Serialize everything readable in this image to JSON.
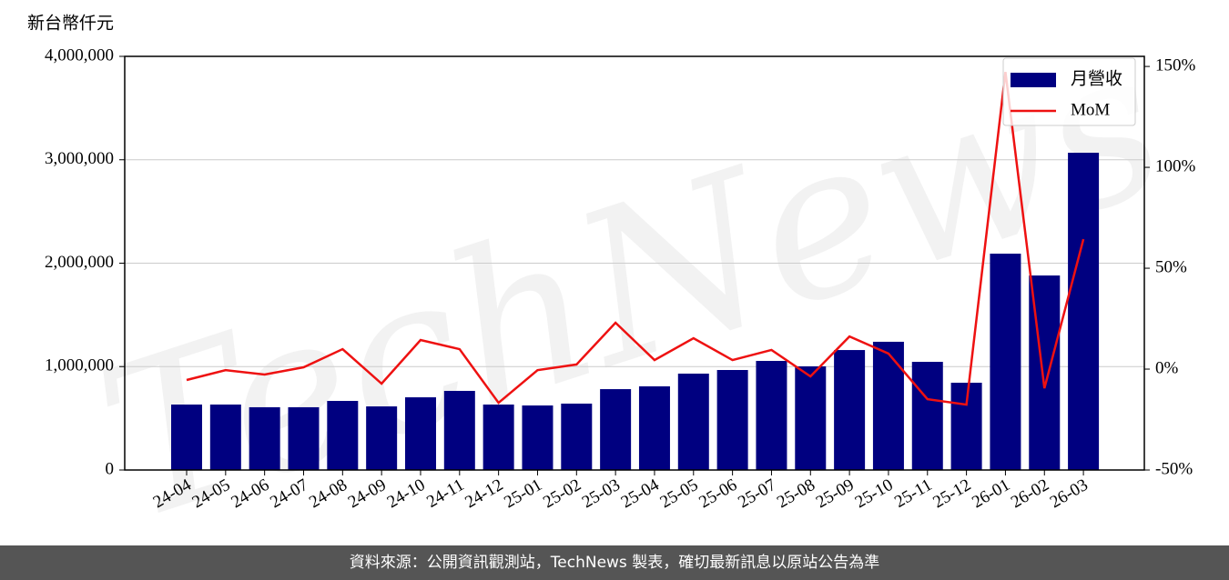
{
  "chart_data": {
    "type": "bar",
    "y_axis_label": "新台幣仟元",
    "watermark": "TechNews",
    "footer": "資料來源：公開資訊觀測站，TechNews 製表，確切最新訊息以原站公告為準",
    "categories": [
      "24-04",
      "24-05",
      "24-06",
      "24-07",
      "24-08",
      "24-09",
      "24-10",
      "24-11",
      "24-12",
      "25-01",
      "25-02",
      "25-03",
      "25-04",
      "25-05",
      "25-06",
      "25-07",
      "25-08",
      "25-09",
      "25-10",
      "25-11",
      "25-12",
      "26-01",
      "26-02",
      "26-03"
    ],
    "series": [
      {
        "name": "月營收",
        "type": "bar",
        "color": "#000080",
        "values": [
          633000,
          633000,
          607000,
          607000,
          668000,
          615000,
          703000,
          765000,
          633000,
          624000,
          642000,
          782000,
          809000,
          932000,
          967000,
          1055000,
          1002000,
          1160000,
          1240000,
          1046000,
          844000,
          2092000,
          1881000,
          3068000
        ]
      },
      {
        "name": "MoM",
        "type": "line",
        "axis": "y2",
        "color": "#ee1111",
        "values": [
          -5.4,
          -0.5,
          -2.7,
          0.9,
          9.9,
          -7.2,
          14.4,
          9.9,
          -16.7,
          -0.5,
          2.3,
          23.0,
          4.5,
          15.3,
          4.5,
          9.5,
          -3.6,
          16.2,
          7.7,
          -14.9,
          -17.6,
          147.3,
          -9.5,
          64.4
        ]
      }
    ],
    "ylim": [
      0,
      4000000
    ],
    "yticks": [
      0,
      {
        "value": 1000000,
        "label": "1,000,000"
      },
      {
        "value": 2000000,
        "label": "2,000,000"
      },
      {
        "value": 3000000,
        "label": "3,000,000"
      },
      {
        "value": 4000000,
        "label": "4,000,000"
      }
    ],
    "y2lim": [
      -50,
      155
    ],
    "y2ticks": [
      {
        "value": -50,
        "label": "-50%"
      },
      {
        "value": 0,
        "label": "0%"
      },
      {
        "value": 50,
        "label": "50%"
      },
      {
        "value": 100,
        "label": "100%"
      },
      {
        "value": 150,
        "label": "150%"
      }
    ],
    "grid": true,
    "legend": "upper right"
  }
}
